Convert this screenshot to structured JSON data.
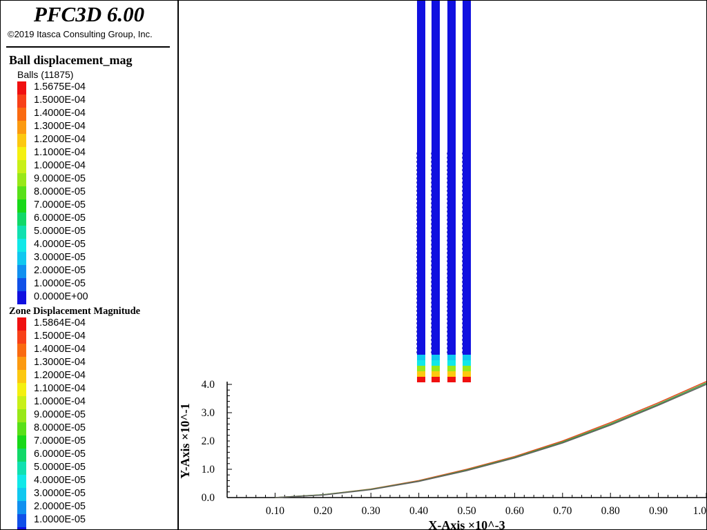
{
  "app": {
    "title": "PFC3D 6.00",
    "copyright": "©2019 Itasca Consulting Group, Inc."
  },
  "ball_legend": {
    "title": "Ball displacement_mag",
    "subtitle": "Balls (11875)",
    "entries": [
      {
        "label": "1.5675E-04",
        "color": "#f01010"
      },
      {
        "label": "1.5000E-04",
        "color": "#f84018"
      },
      {
        "label": "1.4000E-04",
        "color": "#fa6a10"
      },
      {
        "label": "1.3000E-04",
        "color": "#fc9a10"
      },
      {
        "label": "1.2000E-04",
        "color": "#fcc810"
      },
      {
        "label": "1.1000E-04",
        "color": "#f4f010"
      },
      {
        "label": "1.0000E-04",
        "color": "#c8f018"
      },
      {
        "label": "9.0000E-05",
        "color": "#98e818"
      },
      {
        "label": "8.0000E-05",
        "color": "#58e018"
      },
      {
        "label": "7.0000E-05",
        "color": "#18d818"
      },
      {
        "label": "6.0000E-05",
        "color": "#10d868"
      },
      {
        "label": "5.0000E-05",
        "color": "#10e0b0"
      },
      {
        "label": "4.0000E-05",
        "color": "#10e8e8"
      },
      {
        "label": "3.0000E-05",
        "color": "#10c8f0"
      },
      {
        "label": "2.0000E-05",
        "color": "#1090f0"
      },
      {
        "label": "1.0000E-05",
        "color": "#1050e8"
      },
      {
        "label": "0.0000E+00",
        "color": "#1010e0"
      }
    ]
  },
  "zone_legend": {
    "title": "Zone Displacement Magnitude",
    "entries": [
      {
        "label": "1.5864E-04",
        "color": "#f01010"
      },
      {
        "label": "1.5000E-04",
        "color": "#f84018"
      },
      {
        "label": "1.4000E-04",
        "color": "#fa6a10"
      },
      {
        "label": "1.3000E-04",
        "color": "#fc9a10"
      },
      {
        "label": "1.2000E-04",
        "color": "#fcc810"
      },
      {
        "label": "1.1000E-04",
        "color": "#f4f010"
      },
      {
        "label": "1.0000E-04",
        "color": "#c8f018"
      },
      {
        "label": "9.0000E-05",
        "color": "#98e818"
      },
      {
        "label": "8.0000E-05",
        "color": "#58e018"
      },
      {
        "label": "7.0000E-05",
        "color": "#18d818"
      },
      {
        "label": "6.0000E-05",
        "color": "#10d868"
      },
      {
        "label": "5.0000E-05",
        "color": "#10e0b0"
      },
      {
        "label": "4.0000E-05",
        "color": "#10e8e8"
      },
      {
        "label": "3.0000E-05",
        "color": "#10c8f0"
      },
      {
        "label": "2.0000E-05",
        "color": "#1090f0"
      },
      {
        "label": "1.0000E-05",
        "color": "#1050e8"
      },
      {
        "label": "",
        "color": "#1010e0"
      }
    ]
  },
  "model_view": {
    "columns": 4,
    "column_color": "#1010e0",
    "bottom_gradient": [
      "#10c8f0",
      "#10e8e8",
      "#98e818",
      "#fcc810",
      "#f01010"
    ]
  },
  "chart_data": {
    "type": "line",
    "xlabel": "X-Axis ×10^-3",
    "ylabel": "Y-Axis ×10^-1",
    "x_ticks": [
      "0.10",
      "0.20",
      "0.30",
      "0.40",
      "0.50",
      "0.60",
      "0.70",
      "0.80",
      "0.90",
      "1.0"
    ],
    "y_ticks": [
      "0.0",
      "1.0",
      "2.0",
      "3.0",
      "4.0"
    ],
    "xlim": [
      0.0,
      1.0
    ],
    "ylim": [
      0.0,
      4.0
    ],
    "series": [
      {
        "color": "#e05020",
        "x": [
          0.1,
          0.2,
          0.3,
          0.4,
          0.5,
          0.6,
          0.7,
          0.8,
          0.9,
          1.0
        ],
        "y": [
          0.0,
          0.1,
          0.3,
          0.6,
          1.0,
          1.45,
          2.0,
          2.65,
          3.35,
          4.1
        ]
      },
      {
        "color": "#40a040",
        "x": [
          0.1,
          0.2,
          0.3,
          0.4,
          0.5,
          0.6,
          0.7,
          0.8,
          0.9,
          1.0
        ],
        "y": [
          0.0,
          0.1,
          0.29,
          0.58,
          0.97,
          1.42,
          1.96,
          2.6,
          3.3,
          4.05
        ]
      },
      {
        "color": "#606060",
        "x": [
          0.1,
          0.2,
          0.3,
          0.4,
          0.5,
          0.6,
          0.7,
          0.8,
          0.9,
          1.0
        ],
        "y": [
          0.0,
          0.09,
          0.28,
          0.57,
          0.95,
          1.4,
          1.93,
          2.56,
          3.26,
          4.0
        ]
      }
    ]
  }
}
